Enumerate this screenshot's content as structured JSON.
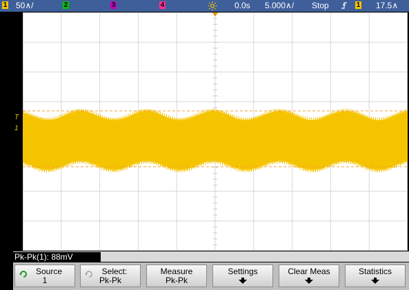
{
  "topbar": {
    "ch1_num": "1",
    "ch1_scale": "50∧/",
    "ch2_num": "2",
    "ch3_num": "3",
    "ch4_num": "4",
    "time_delay": "0.0s",
    "time_scale": "5.000∧/",
    "run_state": "Stop",
    "trig_ch_num": "1",
    "trig_level": "17.5∧"
  },
  "markers": {
    "ch1_marker": "1",
    "trig_marker": "T"
  },
  "measurement": {
    "readout": "Pk-Pk(1): 88mV"
  },
  "softkeys": {
    "source_label": "Source",
    "source_value": "1",
    "select_label": "Select:",
    "select_value": "Pk-Pk",
    "measure_label": "Measure",
    "measure_value": "Pk-Pk",
    "settings_label": "Settings",
    "clear_label": "Clear Meas",
    "statistics_label": "Statistics"
  },
  "colors": {
    "ch1": "#f5c400",
    "ch2": "#00c000",
    "ch3": "#c000c0",
    "ch4": "#ff3090",
    "topbar": "#3f5f9a"
  }
}
